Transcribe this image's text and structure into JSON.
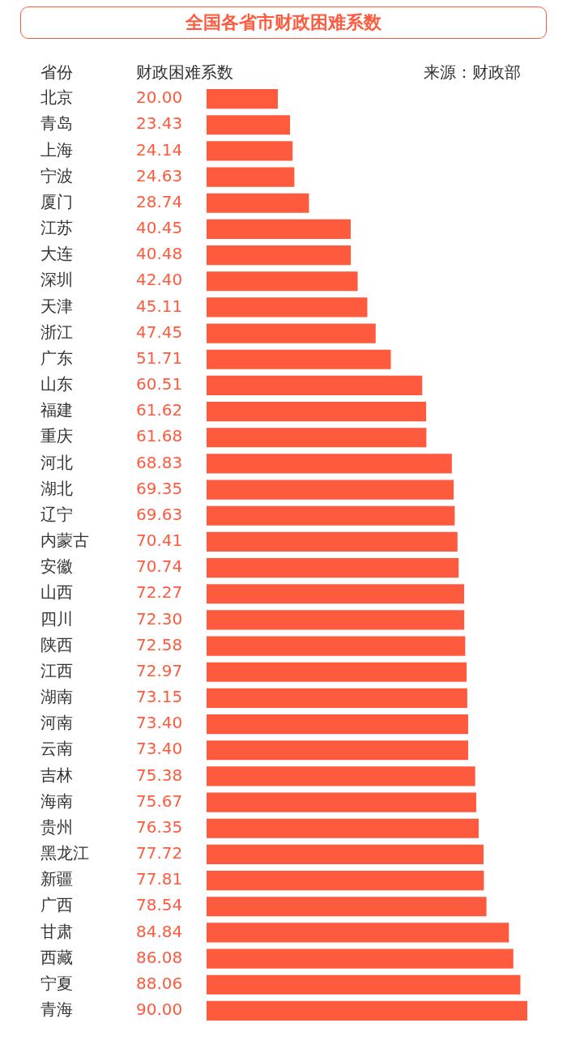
{
  "chart_data": {
    "type": "bar",
    "orientation": "horizontal",
    "title": "全国各省市财政困难系数",
    "ylabel": "省份",
    "xlabel": "财政困难系数",
    "annotations": [
      "来源：财政部"
    ],
    "categories": [
      "北京",
      "青岛",
      "上海",
      "宁波",
      "厦门",
      "江苏",
      "大连",
      "深圳",
      "天津",
      "浙江",
      "广东",
      "山东",
      "福建",
      "重庆",
      "河北",
      "湖北",
      "辽宁",
      "内蒙古",
      "安徽",
      "山西",
      "四川",
      "陕西",
      "江西",
      "湖南",
      "河南",
      "云南",
      "吉林",
      "海南",
      "贵州",
      "黑龙江",
      "新疆",
      "广西",
      "甘肃",
      "西藏",
      "宁夏",
      "青海"
    ],
    "values": [
      20.0,
      23.43,
      24.14,
      24.63,
      28.74,
      40.45,
      40.48,
      42.4,
      45.11,
      47.45,
      51.71,
      60.51,
      61.62,
      61.68,
      68.83,
      69.35,
      69.63,
      70.41,
      70.74,
      72.27,
      72.3,
      72.58,
      72.97,
      73.15,
      73.4,
      73.4,
      75.38,
      75.67,
      76.35,
      77.72,
      77.81,
      78.54,
      84.84,
      86.08,
      88.06,
      90.0
    ],
    "value_labels": [
      "20.00",
      "23.43",
      "24.14",
      "24.63",
      "28.74",
      "40.45",
      "40.48",
      "42.40",
      "45.11",
      "47.45",
      "51.71",
      "60.51",
      "61.62",
      "61.68",
      "68.83",
      "69.35",
      "69.63",
      "70.41",
      "70.74",
      "72.27",
      "72.30",
      "72.58",
      "72.97",
      "73.15",
      "73.40",
      "73.40",
      "75.38",
      "75.67",
      "76.35",
      "77.72",
      "77.81",
      "78.54",
      "84.84",
      "86.08",
      "88.06",
      "90.00"
    ],
    "color": "#fe5a3e",
    "xlim": [
      0,
      90
    ],
    "tick_labels": "y"
  }
}
